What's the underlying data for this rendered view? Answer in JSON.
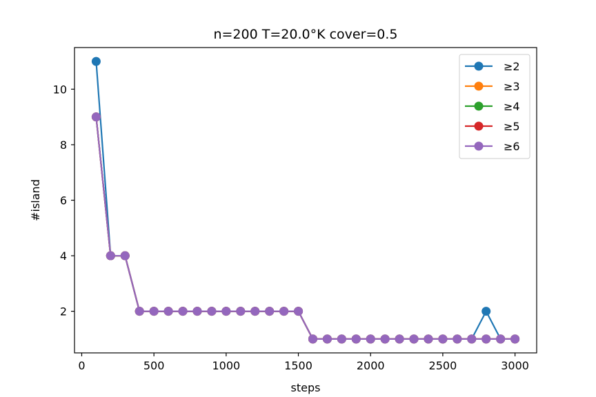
{
  "chart_data": {
    "type": "line",
    "title": "n=200 T=20.0°K cover=0.5",
    "xlabel": "steps",
    "ylabel": "#island",
    "xlim": [
      -50,
      3150
    ],
    "ylim": [
      0.5,
      11.5
    ],
    "xticks": [
      0,
      500,
      1000,
      1500,
      2000,
      2500,
      3000
    ],
    "yticks": [
      2,
      4,
      6,
      8,
      10
    ],
    "grid": false,
    "legend_position": "top-right",
    "x": [
      100,
      200,
      300,
      400,
      500,
      600,
      700,
      800,
      900,
      1000,
      1100,
      1200,
      1300,
      1400,
      1500,
      1600,
      1700,
      1800,
      1900,
      2000,
      2100,
      2200,
      2300,
      2400,
      2500,
      2600,
      2700,
      2800,
      2900,
      3000
    ],
    "series": [
      {
        "name": "≥2",
        "color": "#1f77b4",
        "values": [
          11,
          4,
          4,
          2,
          2,
          2,
          2,
          2,
          2,
          2,
          2,
          2,
          2,
          2,
          2,
          1,
          1,
          1,
          1,
          1,
          1,
          1,
          1,
          1,
          1,
          1,
          1,
          2,
          1,
          1
        ]
      },
      {
        "name": "≥3",
        "color": "#ff7f0e",
        "values": [
          9,
          4,
          4,
          2,
          2,
          2,
          2,
          2,
          2,
          2,
          2,
          2,
          2,
          2,
          2,
          1,
          1,
          1,
          1,
          1,
          1,
          1,
          1,
          1,
          1,
          1,
          1,
          1,
          1,
          1
        ]
      },
      {
        "name": "≥4",
        "color": "#2ca02c",
        "values": [
          9,
          4,
          4,
          2,
          2,
          2,
          2,
          2,
          2,
          2,
          2,
          2,
          2,
          2,
          2,
          1,
          1,
          1,
          1,
          1,
          1,
          1,
          1,
          1,
          1,
          1,
          1,
          1,
          1,
          1
        ]
      },
      {
        "name": "≥5",
        "color": "#d62728",
        "values": [
          9,
          4,
          4,
          2,
          2,
          2,
          2,
          2,
          2,
          2,
          2,
          2,
          2,
          2,
          2,
          1,
          1,
          1,
          1,
          1,
          1,
          1,
          1,
          1,
          1,
          1,
          1,
          1,
          1,
          1
        ]
      },
      {
        "name": "≥6",
        "color": "#9467bd",
        "values": [
          9,
          4,
          4,
          2,
          2,
          2,
          2,
          2,
          2,
          2,
          2,
          2,
          2,
          2,
          2,
          1,
          1,
          1,
          1,
          1,
          1,
          1,
          1,
          1,
          1,
          1,
          1,
          1,
          1,
          1
        ]
      }
    ]
  }
}
